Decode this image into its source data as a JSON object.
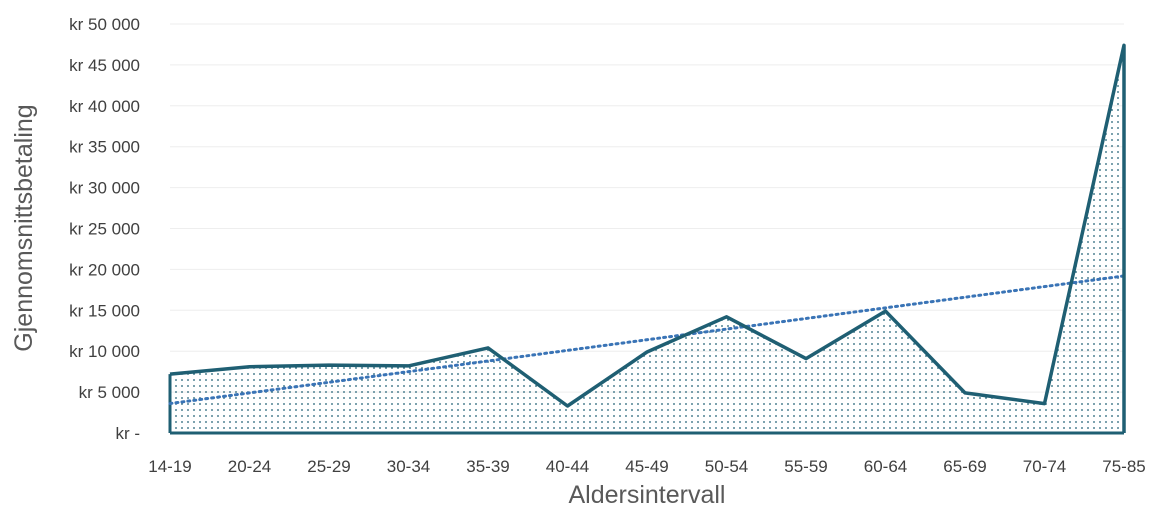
{
  "chart_data": {
    "type": "area",
    "xlabel": "Aldersintervall",
    "ylabel": "Gjennomsnittsbetaling",
    "categories": [
      "14-19",
      "20-24",
      "25-29",
      "30-34",
      "35-39",
      "40-44",
      "45-49",
      "50-54",
      "55-59",
      "60-64",
      "65-69",
      "70-74",
      "75-85"
    ],
    "values": [
      7200,
      8100,
      8300,
      8200,
      10400,
      3300,
      9900,
      14200,
      9100,
      14900,
      4900,
      3600,
      47400
    ],
    "trendline": {
      "type": "linear",
      "start": 3600,
      "end": 19200
    },
    "ylim": [
      0,
      50000
    ],
    "yticks": [
      0,
      5000,
      10000,
      15000,
      20000,
      25000,
      30000,
      35000,
      40000,
      45000,
      50000
    ],
    "ytick_labels": [
      "kr -",
      "kr 5 000",
      "kr 10 000",
      "kr 15 000",
      "kr 20 000",
      "kr 25 000",
      "kr 30 000",
      "kr 35 000",
      "kr 40 000",
      "kr 45 000",
      "kr 50 000"
    ],
    "grid": true,
    "colors": {
      "line": "#1f5f73",
      "fill_dots": "#1f5f73",
      "trend": "#3a74b6",
      "grid": "#eeeeee"
    }
  }
}
